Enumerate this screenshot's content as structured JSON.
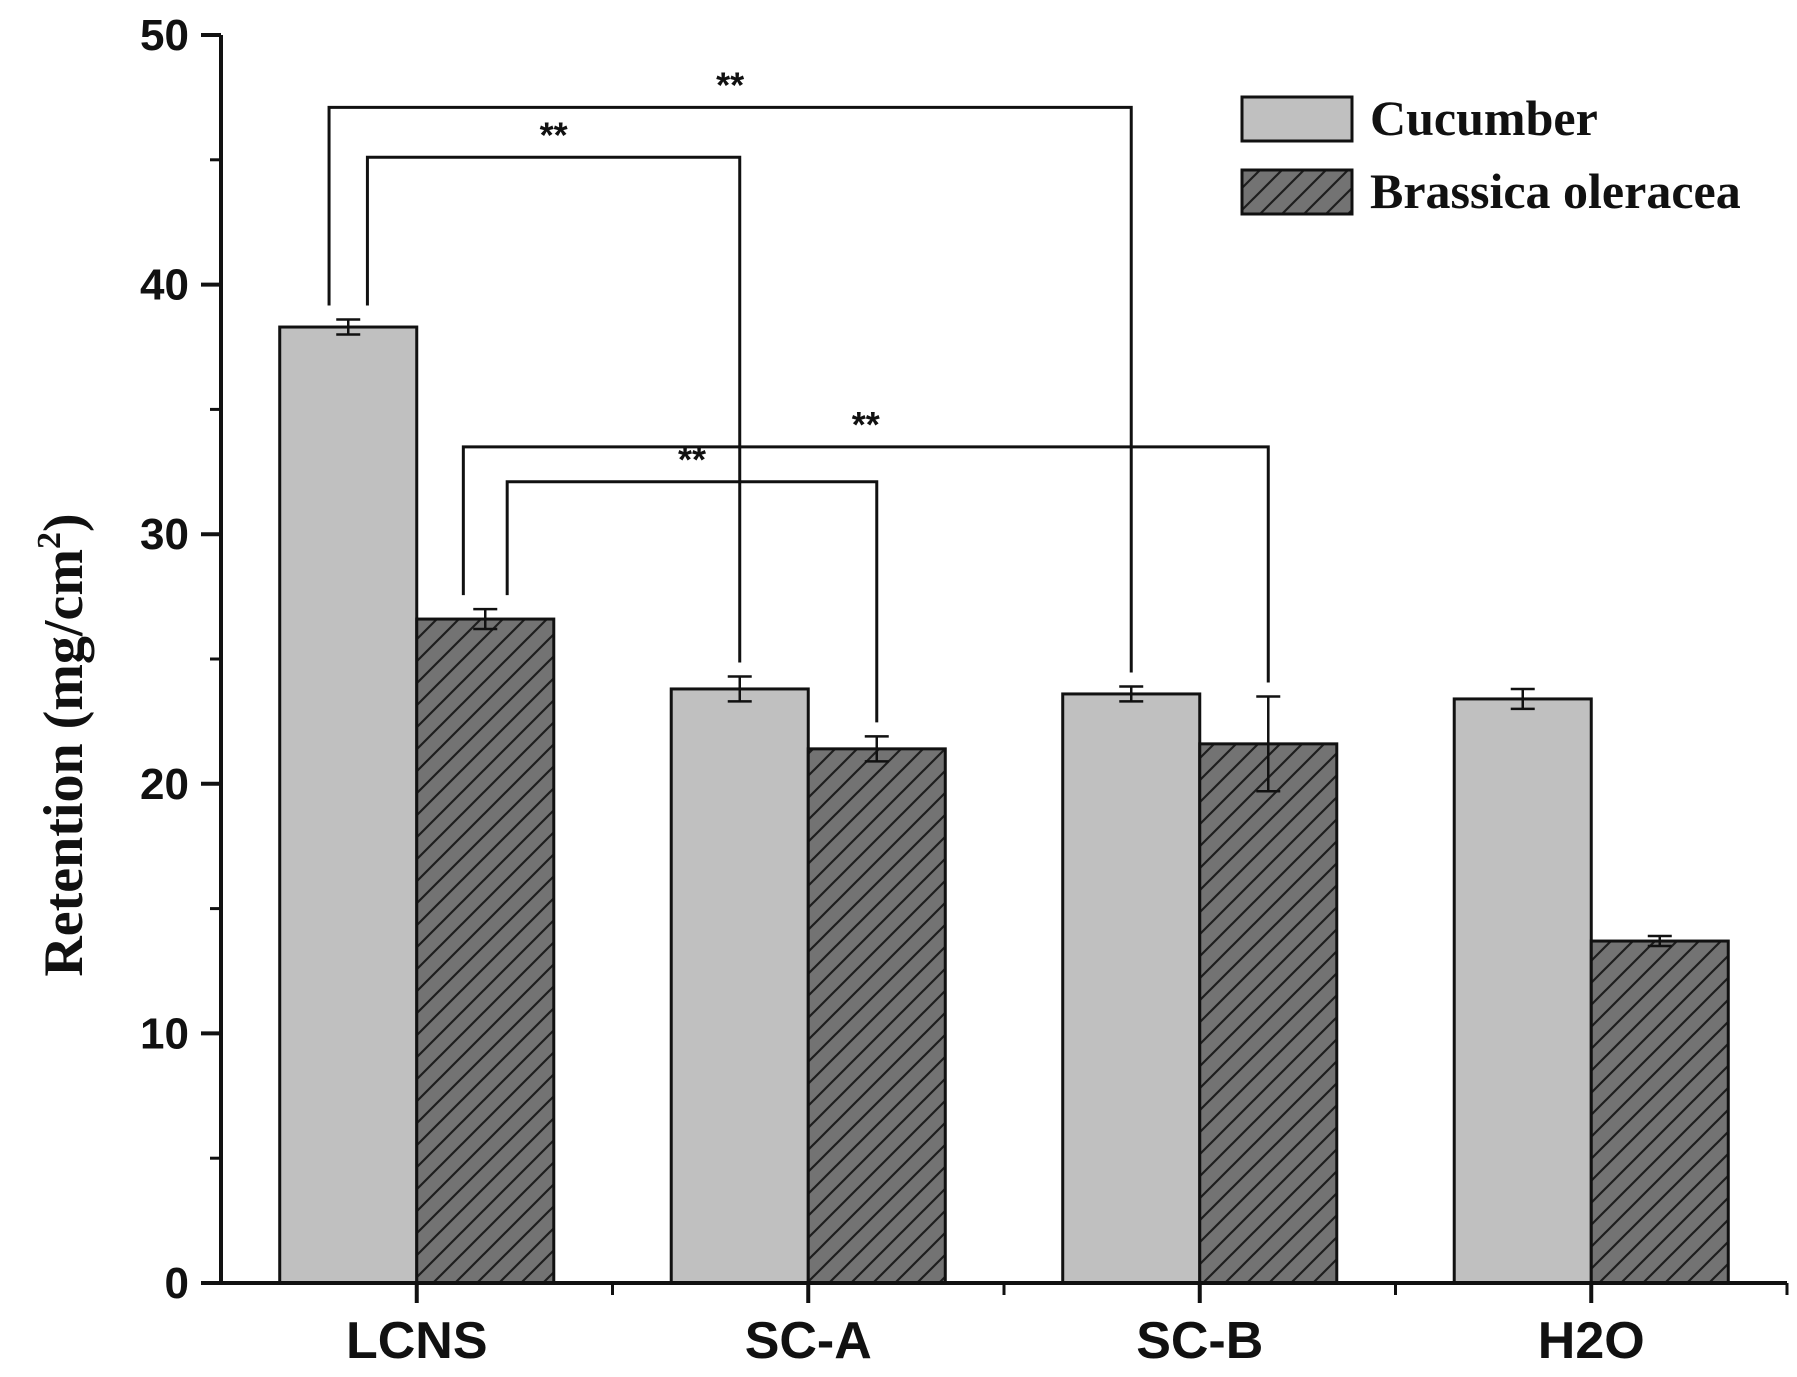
{
  "chart_data": {
    "type": "bar",
    "title": "",
    "xlabel": "",
    "ylabel": "Retention (mg/cm",
    "ylabel_superscript": "2",
    "ylabel_suffix": ")",
    "ylim": [
      0,
      50
    ],
    "yticks": [
      "0",
      "10",
      "20",
      "30",
      "40",
      "50"
    ],
    "categories": [
      "LCNS",
      "SC-A",
      "SC-B",
      "H2O"
    ],
    "series": [
      {
        "name": "Cucumber",
        "color": "#c0c0c0",
        "pattern": "solid",
        "values": [
          38.3,
          23.8,
          23.6,
          23.4
        ],
        "errors": [
          0.3,
          0.5,
          0.3,
          0.4
        ]
      },
      {
        "name": "Brassica oleracea",
        "color": "#737373",
        "pattern": "hatch",
        "values": [
          26.6,
          21.4,
          21.6,
          13.7
        ],
        "errors": [
          0.4,
          0.5,
          1.9,
          0.2
        ]
      }
    ],
    "legend_position": "top-right",
    "significance": [
      {
        "from": [
          0,
          0
        ],
        "to": [
          2,
          0
        ],
        "label": "**"
      },
      {
        "from": [
          0,
          0
        ],
        "to": [
          1,
          0
        ],
        "label": "**"
      },
      {
        "from": [
          0,
          1
        ],
        "to": [
          2,
          1
        ],
        "label": "**"
      },
      {
        "from": [
          0,
          1
        ],
        "to": [
          1,
          1
        ],
        "label": "**"
      }
    ]
  }
}
